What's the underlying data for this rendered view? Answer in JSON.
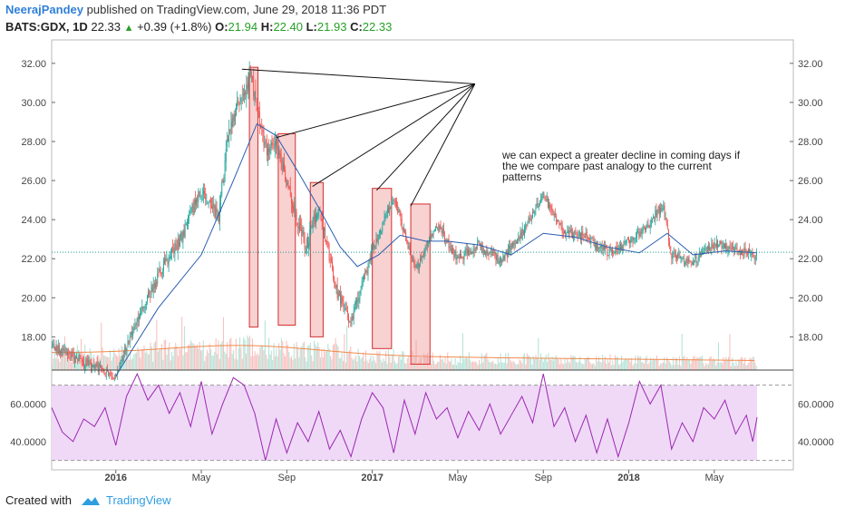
{
  "header": {
    "author": "NeerajPandey",
    "published_text": "published on TradingView.com, June 29, 2018 11:36 PDT",
    "symbol": "BATS:GDX, 1D",
    "last": "22.33",
    "change": "+0.39 (+1.8%)",
    "open_label": "O:",
    "open": "21.94",
    "high_label": "H:",
    "high": "22.40",
    "low_label": "L:",
    "low": "21.93",
    "close_label": "C:",
    "close": "22.33"
  },
  "footer": {
    "created_with": "Created with",
    "brand": "TradingView"
  },
  "colors": {
    "up": "#26a69a",
    "down": "#ef5350",
    "ma": "#2a5db0",
    "volume_ma": "#f08a4b",
    "rsi_line": "#9c27b0",
    "rsi_band": "#efd9f7",
    "last_price_line": "#1e9c8c",
    "box_fill": "#ef9a9a",
    "box_stroke": "#d32f2f"
  },
  "chart_data": {
    "type": "candlestick",
    "symbol": "BATS:GDX",
    "interval": "1D",
    "price_axis": {
      "min": 16.3,
      "max": 33.2,
      "ticks": [
        "32.00",
        "30.00",
        "28.00",
        "26.00",
        "24.00",
        "22.00",
        "20.00",
        "18.00"
      ]
    },
    "time_axis": {
      "labels": [
        "2016",
        "May",
        "Sep",
        "2017",
        "May",
        "Sep",
        "2018",
        "May"
      ],
      "start_month": "2015-10",
      "end_month": "2018-07"
    },
    "last_price": 22.33,
    "price_path": [
      {
        "t": 0.0,
        "p": 17.5
      },
      {
        "t": 3.0,
        "p": 16.0
      },
      {
        "t": 4.0,
        "p": 18.8
      },
      {
        "t": 5.0,
        "p": 21.2
      },
      {
        "t": 6.0,
        "p": 23.0
      },
      {
        "t": 7.0,
        "p": 25.6
      },
      {
        "t": 7.8,
        "p": 24.1
      },
      {
        "t": 8.3,
        "p": 28.7
      },
      {
        "t": 8.8,
        "p": 30.0
      },
      {
        "t": 9.3,
        "p": 31.5
      },
      {
        "t": 10.0,
        "p": 27.6
      },
      {
        "t": 10.4,
        "p": 28.1
      },
      {
        "t": 11.2,
        "p": 25.2
      },
      {
        "t": 11.9,
        "p": 22.6
      },
      {
        "t": 12.5,
        "p": 24.8
      },
      {
        "t": 13.3,
        "p": 20.4
      },
      {
        "t": 14.0,
        "p": 18.7
      },
      {
        "t": 15.0,
        "p": 22.4
      },
      {
        "t": 16.0,
        "p": 25.2
      },
      {
        "t": 17.0,
        "p": 21.4
      },
      {
        "t": 18.0,
        "p": 23.8
      },
      {
        "t": 19.0,
        "p": 22.0
      },
      {
        "t": 20.0,
        "p": 22.7
      },
      {
        "t": 21.0,
        "p": 21.9
      },
      {
        "t": 22.0,
        "p": 23.3
      },
      {
        "t": 23.0,
        "p": 25.3
      },
      {
        "t": 24.0,
        "p": 23.3
      },
      {
        "t": 25.0,
        "p": 23.1
      },
      {
        "t": 26.0,
        "p": 22.3
      },
      {
        "t": 27.0,
        "p": 22.9
      },
      {
        "t": 28.0,
        "p": 23.9
      },
      {
        "t": 28.6,
        "p": 24.7
      },
      {
        "t": 29.0,
        "p": 22.2
      },
      {
        "t": 30.0,
        "p": 21.9
      },
      {
        "t": 31.0,
        "p": 22.7
      },
      {
        "t": 32.0,
        "p": 22.5
      },
      {
        "t": 33.0,
        "p": 22.1
      }
    ],
    "moving_average_path": [
      {
        "t": 3.0,
        "p": 16.0
      },
      {
        "t": 5.0,
        "p": 19.5
      },
      {
        "t": 7.0,
        "p": 22.2
      },
      {
        "t": 8.5,
        "p": 26.0
      },
      {
        "t": 9.6,
        "p": 28.9
      },
      {
        "t": 10.5,
        "p": 28.3
      },
      {
        "t": 11.5,
        "p": 26.5
      },
      {
        "t": 12.5,
        "p": 24.6
      },
      {
        "t": 13.5,
        "p": 22.6
      },
      {
        "t": 14.3,
        "p": 21.6
      },
      {
        "t": 15.3,
        "p": 22.2
      },
      {
        "t": 16.3,
        "p": 23.2
      },
      {
        "t": 17.5,
        "p": 22.9
      },
      {
        "t": 18.5,
        "p": 22.9
      },
      {
        "t": 20.0,
        "p": 22.7
      },
      {
        "t": 21.5,
        "p": 22.2
      },
      {
        "t": 23.0,
        "p": 23.3
      },
      {
        "t": 24.5,
        "p": 23.1
      },
      {
        "t": 26.0,
        "p": 22.6
      },
      {
        "t": 27.5,
        "p": 22.3
      },
      {
        "t": 28.8,
        "p": 23.3
      },
      {
        "t": 30.0,
        "p": 22.2
      },
      {
        "t": 31.5,
        "p": 22.4
      },
      {
        "t": 33.0,
        "p": 22.3
      }
    ],
    "pattern_boxes": [
      {
        "t0": 9.25,
        "t1": 9.65,
        "top": 31.8,
        "bottom": 18.5
      },
      {
        "t0": 10.6,
        "t1": 11.4,
        "top": 28.4,
        "bottom": 18.6
      },
      {
        "t0": 12.1,
        "t1": 12.7,
        "top": 25.9,
        "bottom": 18.0
      },
      {
        "t0": 15.0,
        "t1": 15.9,
        "top": 25.6,
        "bottom": 17.4
      },
      {
        "t0": 16.8,
        "t1": 17.7,
        "top": 24.8,
        "bottom": 16.6
      }
    ],
    "annotation": {
      "text_lines": [
        "we can expect a greater decline in coming days if",
        "the we compare past analogy to the current",
        "patterns"
      ],
      "apex": {
        "t": 19.8,
        "p": 30.95
      },
      "targets": [
        {
          "t": 8.9,
          "p": 31.7
        },
        {
          "t": 10.5,
          "p": 28.2
        },
        {
          "t": 12.2,
          "p": 25.7
        },
        {
          "t": 15.2,
          "p": 25.5
        },
        {
          "t": 16.8,
          "p": 24.7
        }
      ]
    },
    "rsi": {
      "ticks": [
        "60.0000",
        "40.0000"
      ],
      "range": [
        25,
        78
      ],
      "upper_band": 70,
      "lower_band": 30,
      "path": [
        {
          "t": 0.0,
          "p": 58
        },
        {
          "t": 0.5,
          "p": 45
        },
        {
          "t": 1.0,
          "p": 40
        },
        {
          "t": 1.5,
          "p": 52
        },
        {
          "t": 2.0,
          "p": 48
        },
        {
          "t": 2.5,
          "p": 58
        },
        {
          "t": 3.0,
          "p": 38
        },
        {
          "t": 3.5,
          "p": 64
        },
        {
          "t": 4.0,
          "p": 76
        },
        {
          "t": 4.5,
          "p": 62
        },
        {
          "t": 5.0,
          "p": 70
        },
        {
          "t": 5.5,
          "p": 55
        },
        {
          "t": 6.0,
          "p": 66
        },
        {
          "t": 6.5,
          "p": 48
        },
        {
          "t": 7.0,
          "p": 72
        },
        {
          "t": 7.5,
          "p": 44
        },
        {
          "t": 8.0,
          "p": 60
        },
        {
          "t": 8.5,
          "p": 74
        },
        {
          "t": 9.0,
          "p": 70
        },
        {
          "t": 9.5,
          "p": 55
        },
        {
          "t": 10.0,
          "p": 30
        },
        {
          "t": 10.5,
          "p": 52
        },
        {
          "t": 11.0,
          "p": 34
        },
        {
          "t": 11.5,
          "p": 50
        },
        {
          "t": 12.0,
          "p": 40
        },
        {
          "t": 12.5,
          "p": 56
        },
        {
          "t": 13.0,
          "p": 36
        },
        {
          "t": 13.5,
          "p": 46
        },
        {
          "t": 14.0,
          "p": 32
        },
        {
          "t": 14.5,
          "p": 52
        },
        {
          "t": 15.0,
          "p": 66
        },
        {
          "t": 15.5,
          "p": 58
        },
        {
          "t": 16.0,
          "p": 34
        },
        {
          "t": 16.5,
          "p": 62
        },
        {
          "t": 17.0,
          "p": 44
        },
        {
          "t": 17.5,
          "p": 66
        },
        {
          "t": 18.0,
          "p": 52
        },
        {
          "t": 18.5,
          "p": 58
        },
        {
          "t": 19.0,
          "p": 42
        },
        {
          "t": 19.5,
          "p": 56
        },
        {
          "t": 20.0,
          "p": 46
        },
        {
          "t": 20.5,
          "p": 60
        },
        {
          "t": 21.0,
          "p": 44
        },
        {
          "t": 21.5,
          "p": 54
        },
        {
          "t": 22.0,
          "p": 64
        },
        {
          "t": 22.5,
          "p": 50
        },
        {
          "t": 23.0,
          "p": 76
        },
        {
          "t": 23.5,
          "p": 48
        },
        {
          "t": 24.0,
          "p": 58
        },
        {
          "t": 24.5,
          "p": 40
        },
        {
          "t": 25.0,
          "p": 54
        },
        {
          "t": 25.5,
          "p": 34
        },
        {
          "t": 26.0,
          "p": 52
        },
        {
          "t": 26.5,
          "p": 32
        },
        {
          "t": 27.0,
          "p": 50
        },
        {
          "t": 27.5,
          "p": 72
        },
        {
          "t": 28.0,
          "p": 60
        },
        {
          "t": 28.5,
          "p": 70
        },
        {
          "t": 29.0,
          "p": 36
        },
        {
          "t": 29.5,
          "p": 50
        },
        {
          "t": 30.0,
          "p": 40
        },
        {
          "t": 30.5,
          "p": 58
        },
        {
          "t": 31.0,
          "p": 52
        },
        {
          "t": 31.5,
          "p": 62
        },
        {
          "t": 32.0,
          "p": 44
        },
        {
          "t": 32.5,
          "p": 54
        },
        {
          "t": 32.8,
          "p": 40
        },
        {
          "t": 33.0,
          "p": 53
        }
      ]
    }
  }
}
